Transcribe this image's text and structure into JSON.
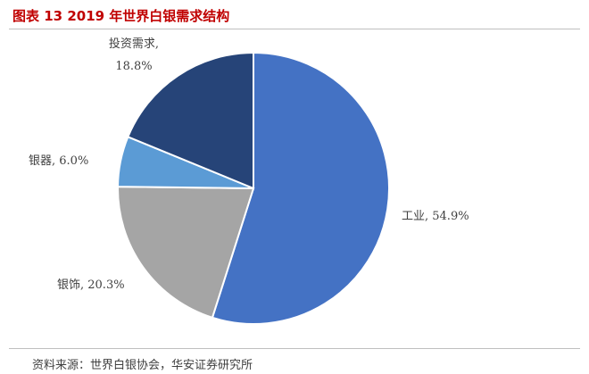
{
  "header": {
    "title": "图表 13 2019 年世界白银需求结构"
  },
  "chart_data": {
    "type": "pie",
    "title": "图表 13 2019 年世界白银需求结构",
    "slices": [
      {
        "name": "工业",
        "value": 54.9,
        "label": "工业, 54.9%",
        "color": "#4472c4"
      },
      {
        "name": "银饰",
        "value": 20.3,
        "label": "银饰, 20.3%",
        "color": "#a5a5a5"
      },
      {
        "name": "银器",
        "value": 6.0,
        "label": "银器, 6.0%",
        "color": "#5b9bd5"
      },
      {
        "name": "投资需求",
        "value": 18.8,
        "label_line1": "投资需求,",
        "label_line2": "18.8%",
        "color": "#264478"
      }
    ],
    "legend": "none"
  },
  "footer": {
    "source": "资料来源：世界白银协会，华安证券研究所"
  }
}
